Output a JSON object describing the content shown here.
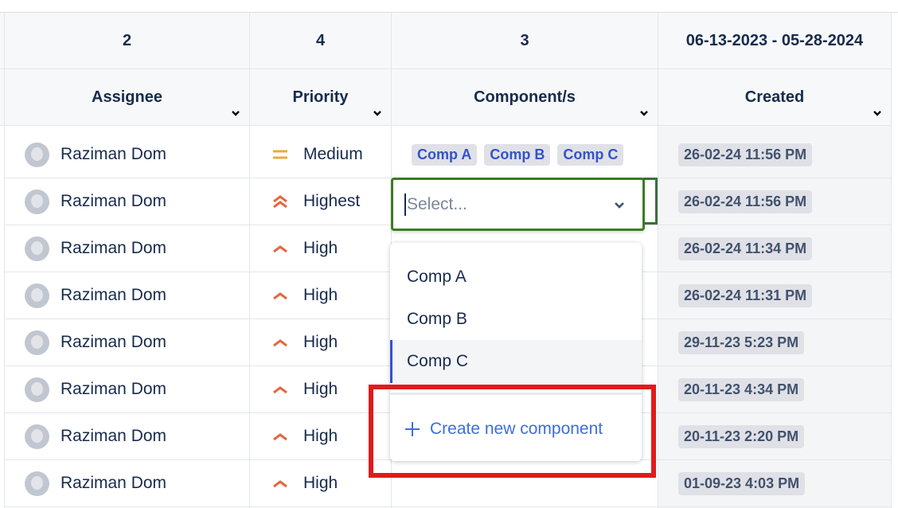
{
  "columns": [
    {
      "count": "2",
      "label": "Assignee"
    },
    {
      "count": "4",
      "label": "Priority"
    },
    {
      "count": "3",
      "label": "Component/s"
    },
    {
      "count": "06-13-2023 - 05-28-2024",
      "label": "Created"
    }
  ],
  "rows": [
    {
      "assignee": "Raziman Dom",
      "priority": "Medium",
      "priority_icon": "medium-priority-icon",
      "components": [
        "Comp A",
        "Comp B",
        "Comp C"
      ],
      "created": "26-02-24 11:56 PM"
    },
    {
      "assignee": "Raziman Dom",
      "priority": "Highest",
      "priority_icon": "highest-priority-icon",
      "components": [],
      "created": "26-02-24 11:56 PM"
    },
    {
      "assignee": "Raziman Dom",
      "priority": "High",
      "priority_icon": "high-priority-icon",
      "components": [],
      "created": "26-02-24 11:34 PM"
    },
    {
      "assignee": "Raziman Dom",
      "priority": "High",
      "priority_icon": "high-priority-icon",
      "components": [],
      "created": "26-02-24 11:31 PM"
    },
    {
      "assignee": "Raziman Dom",
      "priority": "High",
      "priority_icon": "high-priority-icon",
      "components": [],
      "created": "29-11-23 5:23 PM"
    },
    {
      "assignee": "Raziman Dom",
      "priority": "High",
      "priority_icon": "high-priority-icon",
      "components": [],
      "created": "20-11-23 4:34 PM"
    },
    {
      "assignee": "Raziman Dom",
      "priority": "High",
      "priority_icon": "high-priority-icon",
      "components": [],
      "created": "20-11-23 2:20 PM"
    },
    {
      "assignee": "Raziman Dom",
      "priority": "High",
      "priority_icon": "high-priority-icon",
      "components": [],
      "created": "01-09-23 4:03 PM"
    }
  ],
  "component_select": {
    "placeholder": "Select...",
    "options": [
      "Comp A",
      "Comp B",
      "Comp C"
    ],
    "highlighted_option": "Comp C",
    "create_label": "Create new component"
  },
  "colors": {
    "medium": "#f0a83a",
    "high": "#e5673f",
    "tag_text": "#3453c9",
    "focus_border": "#3b7d23",
    "highlight_box": "#e01b1b"
  }
}
